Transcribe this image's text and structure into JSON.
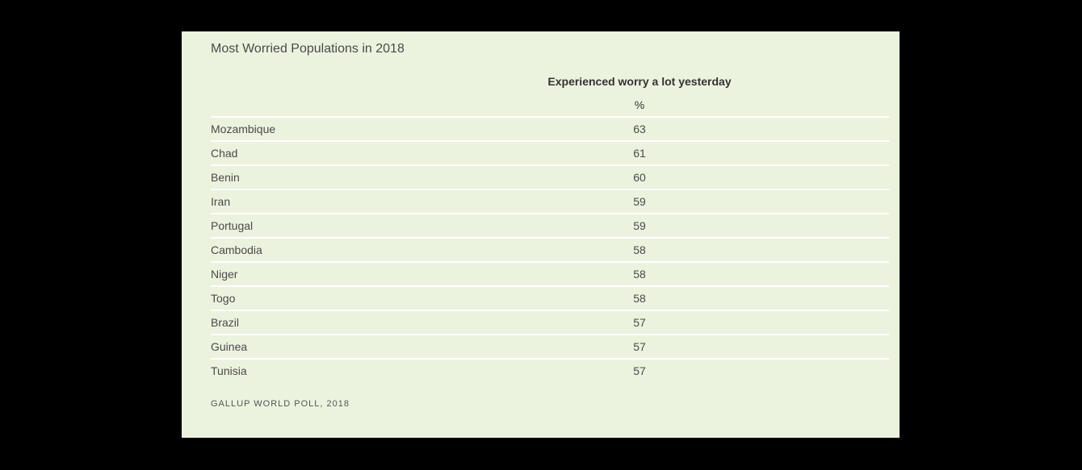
{
  "chart_data": {
    "type": "table",
    "title": "Most Worried Populations in 2018",
    "column_header": "Experienced worry a lot yesterday",
    "unit": "%",
    "categories": [
      "Mozambique",
      "Chad",
      "Benin",
      "Iran",
      "Portugal",
      "Cambodia",
      "Niger",
      "Togo",
      "Brazil",
      "Guinea",
      "Tunisia"
    ],
    "values": [
      63,
      61,
      60,
      59,
      59,
      58,
      58,
      58,
      57,
      57,
      57
    ],
    "source": "GALLUP WORLD POLL, 2018"
  },
  "colors": {
    "page_background": "#000000",
    "panel_background": "#ebf3de",
    "row_divider": "#ffffff"
  }
}
